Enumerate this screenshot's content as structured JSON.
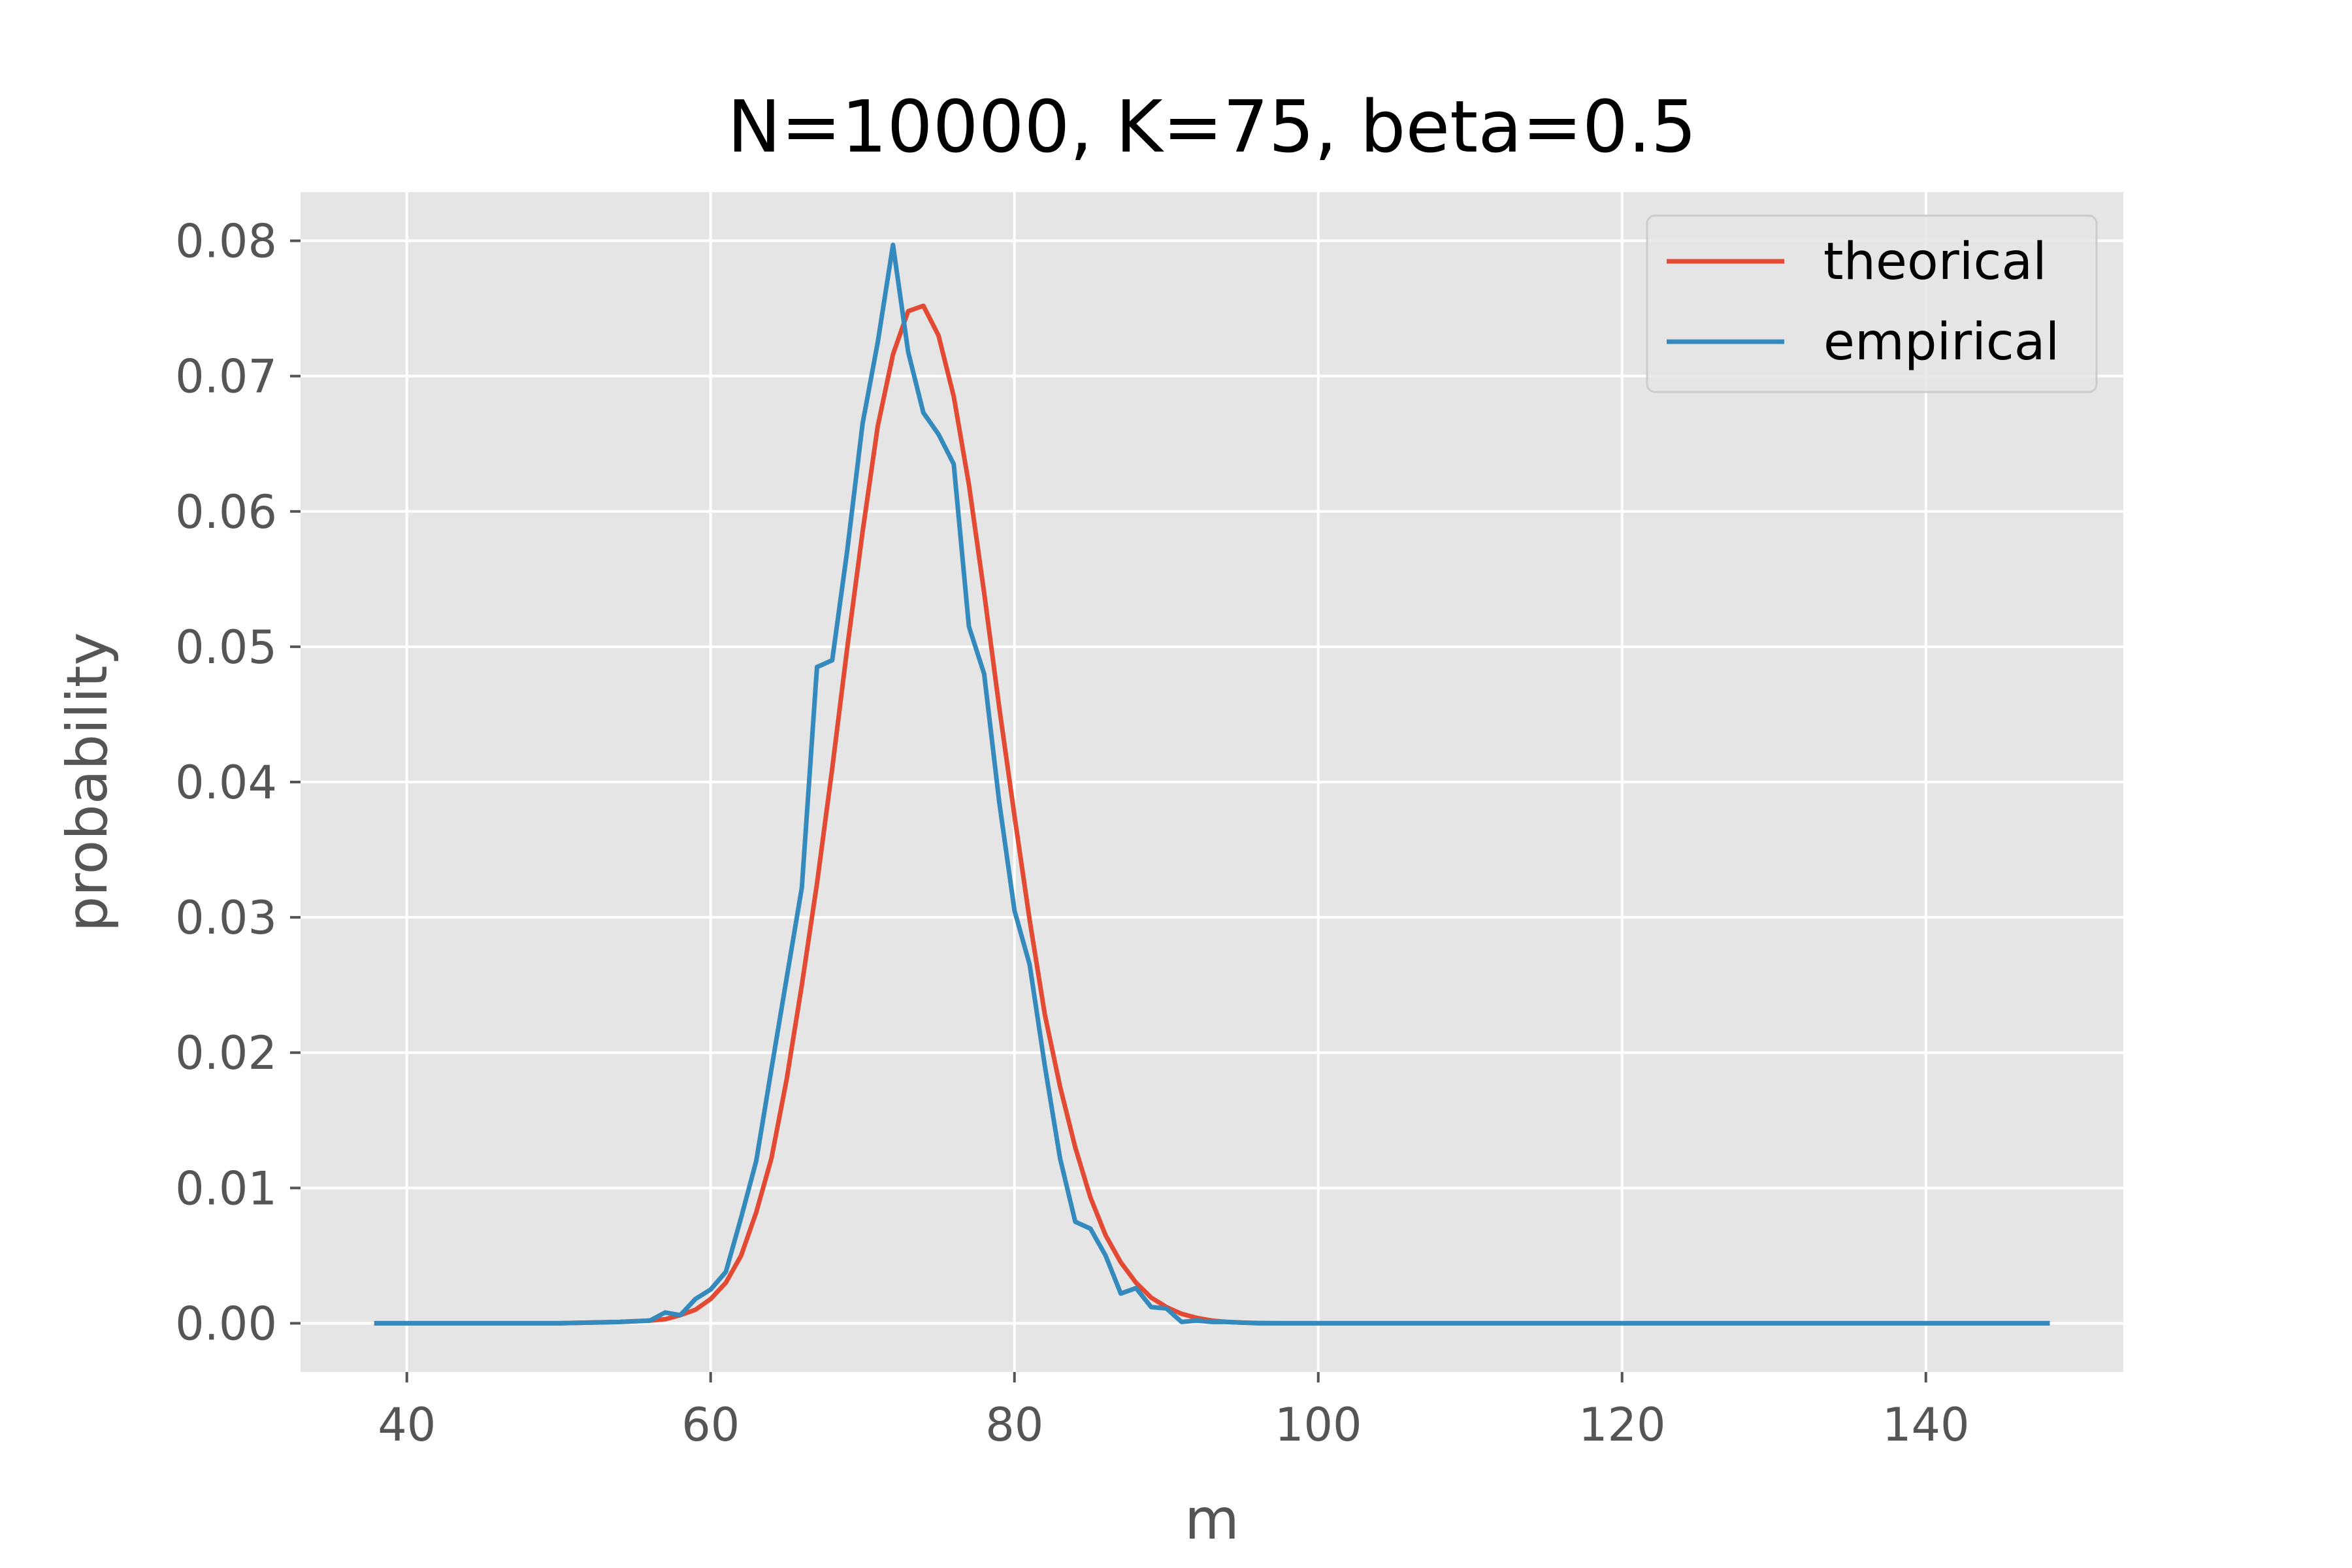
{
  "chart_data": {
    "type": "line",
    "title": "N=10000, K=75, beta=0.5",
    "xlabel": "m",
    "ylabel": "probability",
    "xlim": [
      33,
      153
    ],
    "ylim": [
      -0.0036,
      0.0836
    ],
    "xticks": [
      40,
      60,
      80,
      100,
      120,
      140
    ],
    "yticks": [
      0.0,
      0.01,
      0.02,
      0.03,
      0.04,
      0.05,
      0.06,
      0.07,
      0.08
    ],
    "xtick_labels": [
      "40",
      "60",
      "80",
      "100",
      "120",
      "140"
    ],
    "ytick_labels": [
      "0.00",
      "0.01",
      "0.02",
      "0.03",
      "0.04",
      "0.05",
      "0.06",
      "0.07",
      "0.08"
    ],
    "grid": true,
    "legend_position": "top-right",
    "colors": {
      "background": "#e5e5e5",
      "grid": "#ffffff",
      "theorical": "#e24a33",
      "empirical": "#348abd"
    },
    "series": [
      {
        "name": "theorical",
        "color": "#e24a33",
        "x": [
          38,
          50,
          54,
          56,
          57,
          58,
          59,
          60,
          61,
          62,
          63,
          64,
          65,
          66,
          67,
          68,
          69,
          70,
          71,
          72,
          73,
          74,
          75,
          76,
          77,
          78,
          79,
          80,
          81,
          82,
          83,
          84,
          85,
          86,
          87,
          88,
          89,
          90,
          91,
          92,
          93,
          94,
          95,
          96,
          97,
          98,
          100,
          148
        ],
        "y": [
          0.0,
          0.0,
          0.0001,
          0.0002,
          0.0003,
          0.0006,
          0.001,
          0.0018,
          0.003,
          0.005,
          0.0082,
          0.0122,
          0.018,
          0.025,
          0.0325,
          0.041,
          0.05,
          0.0585,
          0.0663,
          0.0716,
          0.0748,
          0.0752,
          0.073,
          0.0685,
          0.062,
          0.054,
          0.0455,
          0.0375,
          0.0298,
          0.0228,
          0.0175,
          0.013,
          0.0093,
          0.0065,
          0.0045,
          0.003,
          0.0019,
          0.0012,
          0.0007,
          0.0004,
          0.0002,
          0.0001,
          5e-05,
          2e-05,
          1e-05,
          0.0,
          0.0,
          0.0
        ]
      },
      {
        "name": "empirical",
        "color": "#348abd",
        "x": [
          38,
          50,
          54,
          56,
          57,
          58,
          59,
          60,
          61,
          62,
          63,
          64,
          65,
          66,
          67,
          68,
          69,
          70,
          71,
          72,
          73,
          74,
          75,
          76,
          77,
          78,
          79,
          80,
          81,
          82,
          83,
          84,
          85,
          86,
          87,
          88,
          89,
          90,
          91,
          92,
          93,
          94,
          96,
          100,
          148
        ],
        "y": [
          0.0,
          0.0,
          0.0001,
          0.0002,
          0.0008,
          0.0006,
          0.0018,
          0.0025,
          0.0038,
          0.0078,
          0.012,
          0.0188,
          0.0255,
          0.0322,
          0.0485,
          0.049,
          0.0572,
          0.0665,
          0.0725,
          0.0797,
          0.0718,
          0.0673,
          0.0657,
          0.0635,
          0.0515,
          0.048,
          0.0385,
          0.0305,
          0.0265,
          0.019,
          0.0122,
          0.0075,
          0.007,
          0.005,
          0.0022,
          0.0026,
          0.0012,
          0.0011,
          0.0001,
          0.0002,
          0.0001,
          0.0001,
          0.0,
          0.0,
          0.0
        ]
      }
    ]
  }
}
